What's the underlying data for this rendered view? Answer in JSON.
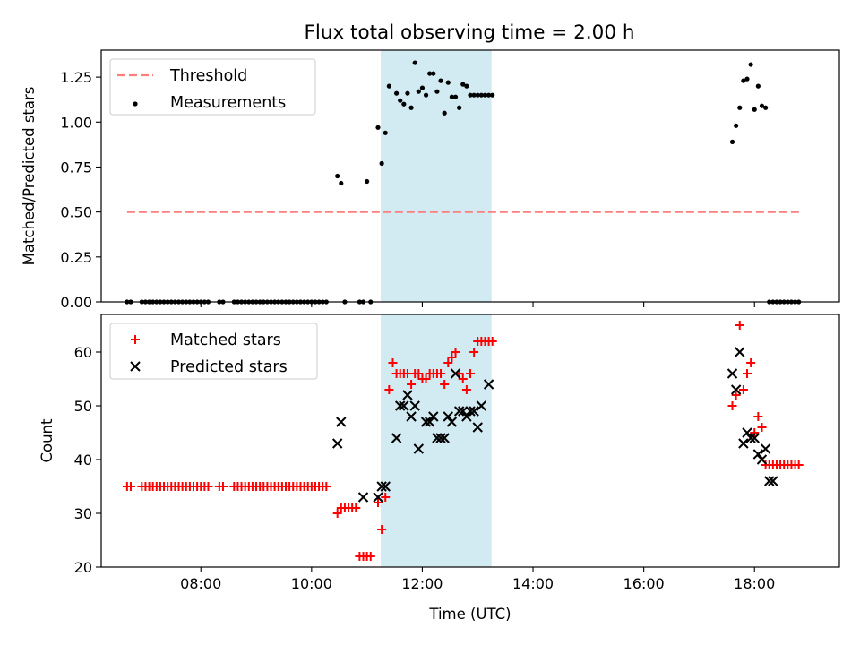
{
  "title": "Flux total observing time = 2.00 h",
  "chart_data": [
    {
      "type": "scatter",
      "panel": "top",
      "title": "Flux total observing time = 2.00 h",
      "xlabel": "",
      "ylabel": "Matched/Predicted stars",
      "xlim": [
        "06:12",
        "19:32"
      ],
      "ylim": [
        0,
        1.4
      ],
      "yticks": [
        "0.00",
        "0.25",
        "0.50",
        "0.75",
        "1.00",
        "1.25"
      ],
      "shaded_interval": [
        "11:15",
        "13:15"
      ],
      "shade_color": "#add8e6",
      "legend_position": "upper left",
      "series": [
        {
          "name": "Threshold",
          "style": "dashed-line",
          "color": "#ff7f7f",
          "x": [
            "06:40",
            "18:50"
          ],
          "y": [
            0.5,
            0.5
          ]
        },
        {
          "name": "Measurements",
          "style": "dots",
          "color": "#000000",
          "x": [
            "06:40",
            "06:44",
            "06:56",
            "07:00",
            "07:04",
            "07:08",
            "07:12",
            "07:16",
            "07:20",
            "07:24",
            "07:28",
            "07:32",
            "07:36",
            "07:40",
            "07:44",
            "07:48",
            "07:52",
            "07:56",
            "08:00",
            "08:04",
            "08:08",
            "08:20",
            "08:24",
            "08:36",
            "08:40",
            "08:44",
            "08:48",
            "08:52",
            "08:56",
            "09:00",
            "09:04",
            "09:08",
            "09:12",
            "09:16",
            "09:20",
            "09:24",
            "09:28",
            "09:32",
            "09:36",
            "09:40",
            "09:44",
            "09:48",
            "09:52",
            "09:56",
            "10:00",
            "10:04",
            "10:08",
            "10:12",
            "10:16",
            "10:28",
            "10:32",
            "10:36",
            "10:52",
            "10:56",
            "11:00",
            "11:04",
            "11:12",
            "11:16",
            "11:20",
            "11:24",
            "11:32",
            "11:36",
            "11:40",
            "11:44",
            "11:48",
            "11:52",
            "11:56",
            "12:00",
            "12:04",
            "12:08",
            "12:12",
            "12:16",
            "12:20",
            "12:24",
            "12:28",
            "12:32",
            "12:36",
            "12:40",
            "12:44",
            "12:48",
            "12:52",
            "12:56",
            "13:00",
            "13:04",
            "13:08",
            "13:12",
            "13:16",
            "17:36",
            "17:40",
            "17:44",
            "17:48",
            "17:52",
            "17:56",
            "18:00",
            "18:04",
            "18:08",
            "18:12",
            "18:16",
            "18:20",
            "18:24",
            "18:28",
            "18:32",
            "18:36",
            "18:40",
            "18:44",
            "18:48"
          ],
          "y": [
            0,
            0,
            0,
            0,
            0,
            0,
            0,
            0,
            0,
            0,
            0,
            0,
            0,
            0,
            0,
            0,
            0,
            0,
            0,
            0,
            0,
            0,
            0,
            0,
            0,
            0,
            0,
            0,
            0,
            0,
            0,
            0,
            0,
            0,
            0,
            0,
            0,
            0,
            0,
            0,
            0,
            0,
            0,
            0,
            0,
            0,
            0,
            0,
            0,
            0.7,
            0.66,
            0,
            0,
            0,
            0.67,
            0,
            0.97,
            0.77,
            0.94,
            1.2,
            1.16,
            1.12,
            1.1,
            1.16,
            1.08,
            1.33,
            1.17,
            1.19,
            1.15,
            1.27,
            1.27,
            1.17,
            1.23,
            1.05,
            1.22,
            1.14,
            1.14,
            1.08,
            1.21,
            1.2,
            1.15,
            1.15,
            1.15,
            1.15,
            1.15,
            1.15,
            1.15,
            0.89,
            0.98,
            1.08,
            1.23,
            1.24,
            1.32,
            1.07,
            1.2,
            1.09,
            1.08,
            0,
            0,
            0,
            0,
            0,
            0,
            0,
            0,
            0
          ]
        }
      ]
    },
    {
      "type": "scatter",
      "panel": "bottom",
      "xlabel": "Time (UTC)",
      "ylabel": "Count",
      "xlim": [
        "06:12",
        "19:32"
      ],
      "ylim": [
        20,
        67
      ],
      "yticks": [
        "20",
        "30",
        "40",
        "50",
        "60"
      ],
      "xticks": [
        "08:00",
        "10:00",
        "12:00",
        "14:00",
        "16:00",
        "18:00"
      ],
      "shaded_interval": [
        "11:15",
        "13:15"
      ],
      "shade_color": "#add8e6",
      "legend_position": "upper left",
      "series": [
        {
          "name": "Matched stars",
          "style": "plus",
          "color": "#ff0000",
          "x": [
            "06:40",
            "06:44",
            "06:56",
            "07:00",
            "07:04",
            "07:08",
            "07:12",
            "07:16",
            "07:20",
            "07:24",
            "07:28",
            "07:32",
            "07:36",
            "07:40",
            "07:44",
            "07:48",
            "07:52",
            "07:56",
            "08:00",
            "08:04",
            "08:08",
            "08:20",
            "08:24",
            "08:36",
            "08:40",
            "08:44",
            "08:48",
            "08:52",
            "08:56",
            "09:00",
            "09:04",
            "09:08",
            "09:12",
            "09:16",
            "09:20",
            "09:24",
            "09:28",
            "09:32",
            "09:36",
            "09:40",
            "09:44",
            "09:48",
            "09:52",
            "09:56",
            "10:00",
            "10:04",
            "10:08",
            "10:12",
            "10:16",
            "10:28",
            "10:32",
            "10:36",
            "10:40",
            "10:44",
            "10:48",
            "10:52",
            "10:56",
            "11:00",
            "11:04",
            "11:12",
            "11:16",
            "11:20",
            "11:24",
            "11:28",
            "11:32",
            "11:36",
            "11:40",
            "11:44",
            "11:48",
            "11:52",
            "11:56",
            "12:00",
            "12:04",
            "12:08",
            "12:12",
            "12:16",
            "12:20",
            "12:24",
            "12:28",
            "12:32",
            "12:36",
            "12:40",
            "12:44",
            "12:48",
            "12:52",
            "12:56",
            "13:00",
            "13:04",
            "13:08",
            "13:12",
            "13:16",
            "17:36",
            "17:40",
            "17:44",
            "17:48",
            "17:52",
            "17:56",
            "18:00",
            "18:04",
            "18:08",
            "18:12",
            "18:16",
            "18:20",
            "18:24",
            "18:28",
            "18:32",
            "18:36",
            "18:40",
            "18:44",
            "18:48"
          ],
          "y": [
            35,
            35,
            35,
            35,
            35,
            35,
            35,
            35,
            35,
            35,
            35,
            35,
            35,
            35,
            35,
            35,
            35,
            35,
            35,
            35,
            35,
            35,
            35,
            35,
            35,
            35,
            35,
            35,
            35,
            35,
            35,
            35,
            35,
            35,
            35,
            35,
            35,
            35,
            35,
            35,
            35,
            35,
            35,
            35,
            35,
            35,
            35,
            35,
            35,
            30,
            31,
            31,
            31,
            31,
            31,
            22,
            22,
            22,
            22,
            32,
            27,
            33,
            53,
            58,
            56,
            56,
            56,
            56,
            54,
            56,
            56,
            55,
            55,
            56,
            56,
            56,
            56,
            54,
            58,
            59,
            60,
            56,
            55,
            53,
            56,
            60,
            62,
            62,
            62,
            62,
            62,
            50,
            52,
            65,
            53,
            56,
            58,
            45,
            48,
            46,
            39,
            39,
            39,
            39,
            39,
            39,
            39,
            39,
            39,
            39
          ]
        },
        {
          "name": "Predicted stars",
          "style": "x",
          "color": "#000000",
          "x": [
            "10:28",
            "10:32",
            "10:56",
            "11:12",
            "11:16",
            "11:20",
            "11:32",
            "11:36",
            "11:40",
            "11:44",
            "11:48",
            "11:52",
            "11:56",
            "12:04",
            "12:08",
            "12:12",
            "12:16",
            "12:20",
            "12:24",
            "12:28",
            "12:32",
            "12:36",
            "12:40",
            "12:44",
            "12:48",
            "12:52",
            "12:56",
            "13:00",
            "13:04",
            "13:12",
            "17:36",
            "17:40",
            "17:44",
            "17:48",
            "17:52",
            "17:56",
            "18:00",
            "18:04",
            "18:08",
            "18:12",
            "18:16",
            "18:20"
          ],
          "y": [
            43,
            47,
            33,
            33,
            35,
            35,
            44,
            50,
            50,
            52,
            48,
            50,
            42,
            47,
            47,
            48,
            44,
            44,
            44,
            48,
            47,
            56,
            49,
            49,
            48,
            49,
            49,
            46,
            50,
            54,
            56,
            53,
            60,
            43,
            45,
            44,
            44,
            41,
            40,
            42,
            36,
            36
          ]
        }
      ]
    }
  ]
}
